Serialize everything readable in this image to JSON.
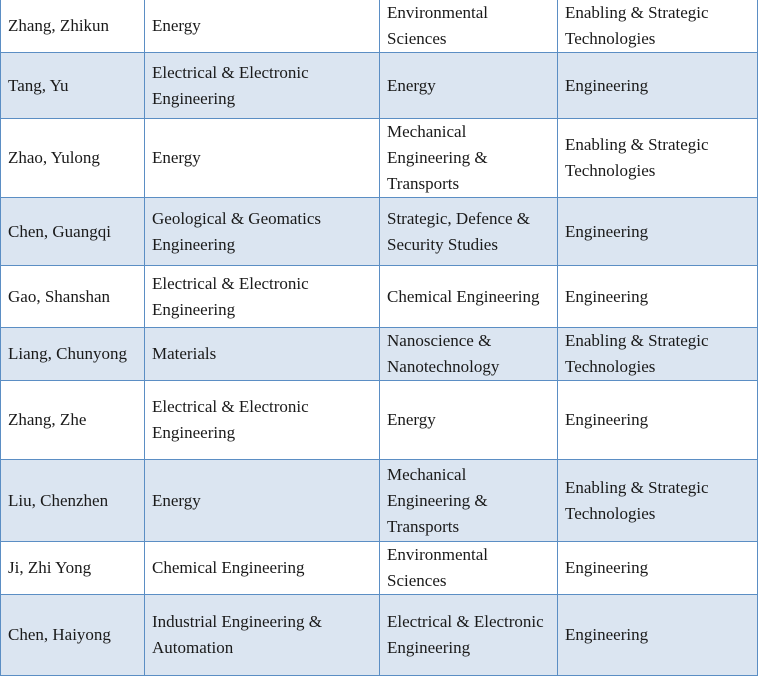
{
  "table": {
    "rows": [
      [
        "Zhang, Zhikun",
        "Energy",
        "Environmental Sciences",
        "Enabling & Strategic Technologies"
      ],
      [
        "Tang, Yu",
        "Electrical & Electronic Engineering",
        "Energy",
        "Engineering"
      ],
      [
        "Zhao, Yulong",
        "Energy",
        "Mechanical Engineering & Transports",
        "Enabling & Strategic Technologies"
      ],
      [
        "Chen, Guangqi",
        "Geological & Geomatics Engineering",
        "Strategic, Defence & Security Studies",
        "Engineering"
      ],
      [
        "Gao, Shanshan",
        "Electrical & Electronic Engineering",
        "Chemical Engineering",
        "Engineering"
      ],
      [
        "Liang, Chunyong",
        "Materials",
        "Nanoscience & Nanotechnology",
        "Enabling & Strategic Technologies"
      ],
      [
        "Zhang, Zhe",
        "Electrical & Electronic Engineering",
        "Energy",
        "Engineering"
      ],
      [
        "Liu, Chenzhen",
        "Energy",
        "Mechanical Engineering & Transports",
        "Enabling & Strategic Technologies"
      ],
      [
        "Ji, Zhi Yong",
        "Chemical Engineering",
        "Environmental Sciences",
        "Engineering"
      ],
      [
        "Chen, Haiyong",
        "Industrial Engineering & Automation",
        "Electrical & Electronic Engineering",
        "Engineering"
      ]
    ]
  },
  "colors": {
    "alt_row": "#dbe5f1",
    "border": "#5b8ec4"
  }
}
